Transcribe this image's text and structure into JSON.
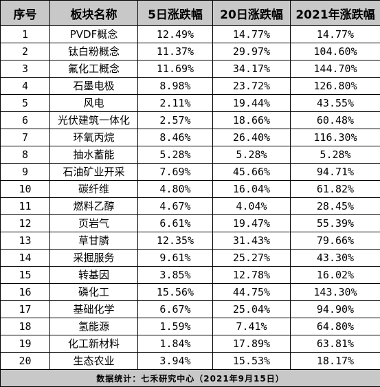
{
  "headers": [
    "序号",
    "板块名称",
    "5日涨跌幅",
    "20日涨跌幅",
    "2021年涨跌幅"
  ],
  "rows": [
    {
      "idx": "1",
      "name": "PVDF概念",
      "d5": "12.49%",
      "d20": "14.77%",
      "y2021": "14.77%"
    },
    {
      "idx": "2",
      "name": "钛白粉概念",
      "d5": "11.37%",
      "d20": "29.97%",
      "y2021": "104.60%"
    },
    {
      "idx": "3",
      "name": "氟化工概念",
      "d5": "11.69%",
      "d20": "34.17%",
      "y2021": "144.70%"
    },
    {
      "idx": "4",
      "name": "石墨电极",
      "d5": "8.98%",
      "d20": "23.72%",
      "y2021": "126.80%"
    },
    {
      "idx": "5",
      "name": "风电",
      "d5": "2.11%",
      "d20": "19.44%",
      "y2021": "43.55%"
    },
    {
      "idx": "6",
      "name": "光伏建筑一体化",
      "d5": "2.57%",
      "d20": "18.66%",
      "y2021": "60.48%"
    },
    {
      "idx": "7",
      "name": "环氧丙烷",
      "d5": "8.46%",
      "d20": "26.40%",
      "y2021": "116.30%"
    },
    {
      "idx": "8",
      "name": "抽水蓄能",
      "d5": "5.28%",
      "d20": "5.28%",
      "y2021": "5.28%"
    },
    {
      "idx": "9",
      "name": "石油矿业开采",
      "d5": "7.69%",
      "d20": "45.66%",
      "y2021": "94.71%"
    },
    {
      "idx": "10",
      "name": "碳纤维",
      "d5": "4.80%",
      "d20": "16.04%",
      "y2021": "61.82%"
    },
    {
      "idx": "11",
      "name": "燃料乙醇",
      "d5": "4.67%",
      "d20": "4.04%",
      "y2021": "28.45%"
    },
    {
      "idx": "12",
      "name": "页岩气",
      "d5": "6.61%",
      "d20": "19.47%",
      "y2021": "55.39%"
    },
    {
      "idx": "13",
      "name": "草甘膦",
      "d5": "12.35%",
      "d20": "31.43%",
      "y2021": "79.66%"
    },
    {
      "idx": "14",
      "name": "采掘服务",
      "d5": "9.61%",
      "d20": "25.27%",
      "y2021": "43.30%"
    },
    {
      "idx": "15",
      "name": "转基因",
      "d5": "3.85%",
      "d20": "12.78%",
      "y2021": "16.02%"
    },
    {
      "idx": "16",
      "name": "磷化工",
      "d5": "15.56%",
      "d20": "44.75%",
      "y2021": "143.30%"
    },
    {
      "idx": "17",
      "name": "基础化学",
      "d5": "6.67%",
      "d20": "25.04%",
      "y2021": "94.90%"
    },
    {
      "idx": "18",
      "name": "氢能源",
      "d5": "1.59%",
      "d20": "7.41%",
      "y2021": "64.80%"
    },
    {
      "idx": "19",
      "name": "化工新材料",
      "d5": "1.84%",
      "d20": "17.89%",
      "y2021": "63.81%"
    },
    {
      "idx": "20",
      "name": "生态农业",
      "d5": "3.94%",
      "d20": "15.53%",
      "y2021": "18.17%"
    }
  ],
  "footer": "数据统计：七禾研究中心（2021年9月15日）"
}
